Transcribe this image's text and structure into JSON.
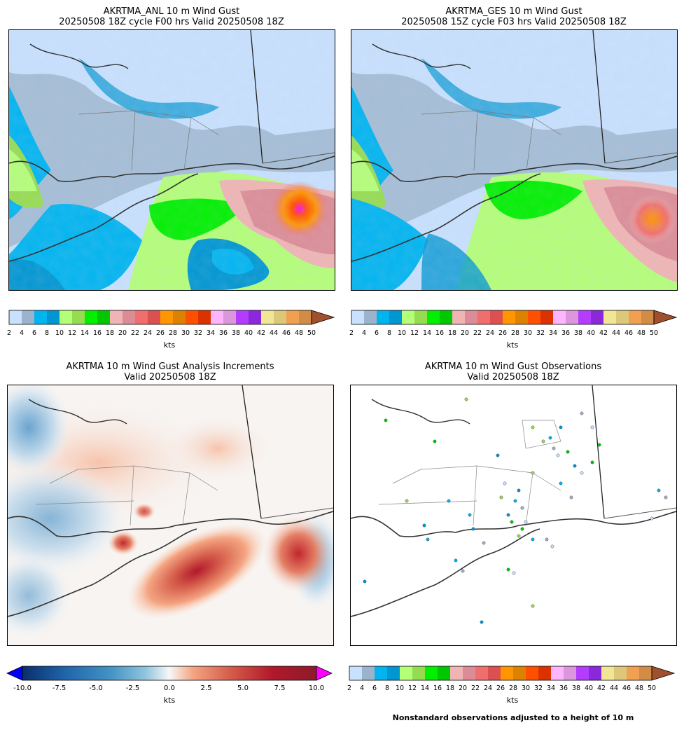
{
  "panels": {
    "anl": {
      "title1": "AKRTMA_ANL 10 m Wind Gust",
      "title2": "20250508 18Z cycle F00 hrs Valid 20250508 18Z"
    },
    "ges": {
      "title1": "AKRTMA_GES 10 m Wind Gust",
      "title2": "20250508 15Z cycle F03 hrs Valid 20250508 18Z"
    },
    "inc": {
      "title1": "AKRTMA 10 m Wind Gust Analysis Increments",
      "title2": "Valid 20250508 18Z"
    },
    "obs": {
      "title1": "AKRTMA 10 m Wind Gust Observations",
      "title2": "Valid 20250508 18Z"
    }
  },
  "gust_colorbar": {
    "unit": "kts",
    "ticks": [
      "2",
      "4",
      "6",
      "8",
      "10",
      "12",
      "14",
      "16",
      "18",
      "20",
      "22",
      "24",
      "26",
      "28",
      "30",
      "32",
      "34",
      "36",
      "38",
      "40",
      "42",
      "44",
      "46",
      "48",
      "50"
    ],
    "colors": [
      "#c8e1ff",
      "#9bb4cc",
      "#00b4f0",
      "#0096d2",
      "#b4ff78",
      "#96dc50",
      "#00f000",
      "#00c800",
      "#f0b4b4",
      "#dc8c96",
      "#f06e6e",
      "#dc5050",
      "#ff9600",
      "#dc8200",
      "#ff5000",
      "#dc3200",
      "#ffb4ff",
      "#dc96dc",
      "#b43cff",
      "#8c28dc",
      "#f0e696",
      "#dcc878",
      "#f0a050",
      "#d28c46"
    ],
    "extend_color": "#a0502d"
  },
  "increment_colorbar": {
    "unit": "kts",
    "ticks": [
      "-10.0",
      "-7.5",
      "-5.0",
      "-2.5",
      "0.0",
      "2.5",
      "5.0",
      "7.5",
      "10.0"
    ],
    "min_color": "#0000ff",
    "max_color": "#ff00ff"
  },
  "obs_note": "Nonstandard observations adjusted to a height of 10 m"
}
